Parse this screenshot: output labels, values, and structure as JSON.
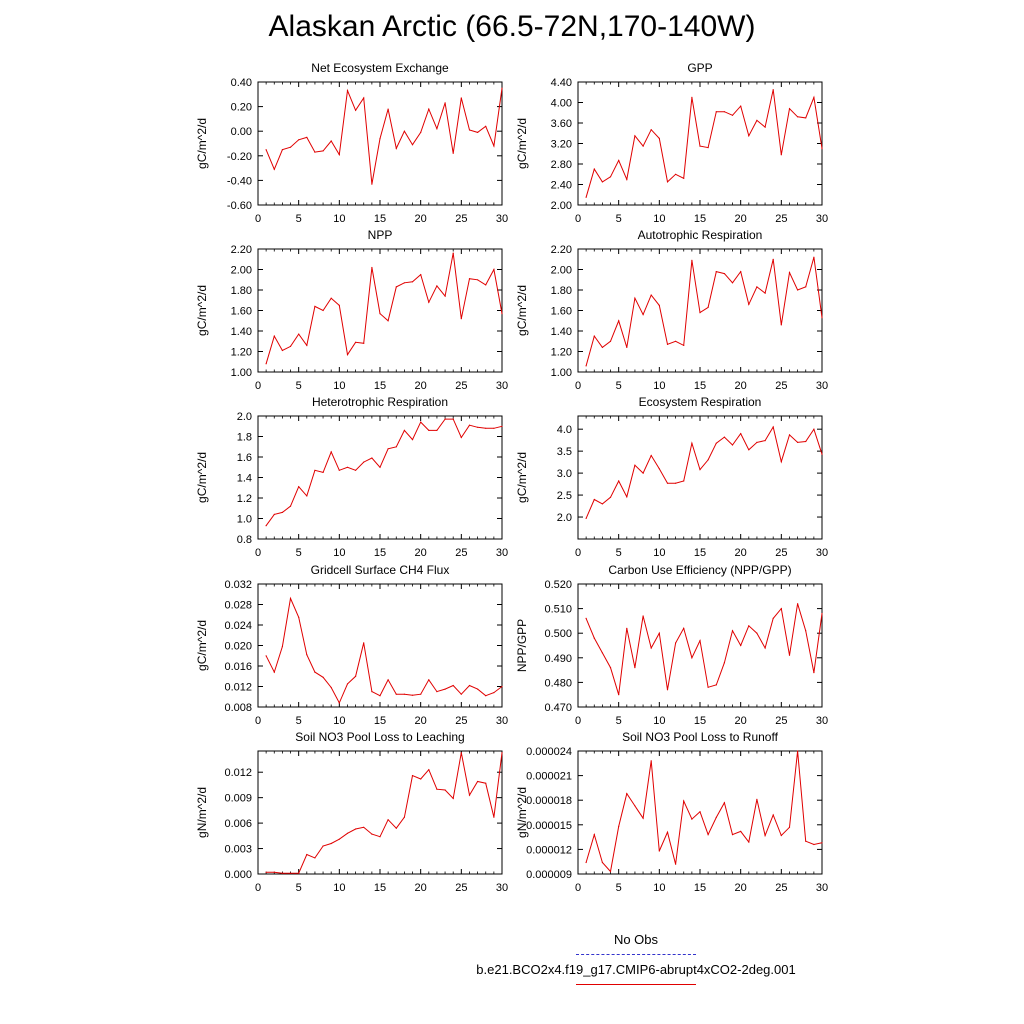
{
  "title": "Alaskan Arctic (66.5-72N,170-140W)",
  "legend": {
    "no_obs_label": "No Obs",
    "no_obs_color": "#3333cc",
    "run_label": "b.e21.BCO2x4.f19_g17.CMIP6-abrupt4xCO2-2deg.001",
    "run_color": "#e00000"
  },
  "chart_data": [
    {
      "type": "line",
      "title": "Net Ecosystem Exchange",
      "ylabel": "gC/m^2/d",
      "xlim": [
        0,
        30
      ],
      "ylim": [
        -0.6,
        0.4
      ],
      "xticks": [
        "0",
        "5",
        "10",
        "15",
        "20",
        "25",
        "30"
      ],
      "yticks": [
        "-0.60",
        "-0.40",
        "-0.20",
        "0.00",
        "0.20",
        "0.40"
      ],
      "x": [
        1,
        2,
        3,
        4,
        5,
        6,
        7,
        8,
        9,
        10,
        11,
        12,
        13,
        14,
        15,
        16,
        17,
        18,
        19,
        20,
        21,
        22,
        23,
        24,
        25,
        26,
        27,
        28,
        29,
        30
      ],
      "values": [
        -0.15,
        -0.31,
        -0.15,
        -0.13,
        -0.07,
        -0.05,
        -0.17,
        -0.16,
        -0.08,
        -0.19,
        0.33,
        0.17,
        0.27,
        -0.43,
        -0.06,
        0.18,
        -0.14,
        0.0,
        -0.11,
        -0.01,
        0.18,
        0.02,
        0.23,
        -0.18,
        0.27,
        0.01,
        -0.01,
        0.04,
        -0.12,
        0.35
      ]
    },
    {
      "type": "line",
      "title": "GPP",
      "ylabel": "gC/m^2/d",
      "xlim": [
        0,
        30
      ],
      "ylim": [
        2.0,
        4.4
      ],
      "xticks": [
        "0",
        "5",
        "10",
        "15",
        "20",
        "25",
        "30"
      ],
      "yticks": [
        "2.00",
        "2.40",
        "2.80",
        "3.20",
        "3.60",
        "4.00",
        "4.40"
      ],
      "x": [
        1,
        2,
        3,
        4,
        5,
        6,
        7,
        8,
        9,
        10,
        11,
        12,
        13,
        14,
        15,
        16,
        17,
        18,
        19,
        20,
        21,
        22,
        23,
        24,
        25,
        26,
        27,
        28,
        29,
        30
      ],
      "values": [
        2.15,
        2.7,
        2.45,
        2.55,
        2.87,
        2.5,
        3.35,
        3.15,
        3.47,
        3.3,
        2.45,
        2.6,
        2.52,
        4.1,
        3.15,
        3.12,
        3.82,
        3.82,
        3.75,
        3.93,
        3.35,
        3.65,
        3.52,
        4.25,
        2.98,
        3.88,
        3.72,
        3.7,
        4.1,
        3.1
      ]
    },
    {
      "type": "line",
      "title": "NPP",
      "ylabel": "gC/m^2/d",
      "xlim": [
        0,
        30
      ],
      "ylim": [
        1.0,
        2.2
      ],
      "xticks": [
        "0",
        "5",
        "10",
        "15",
        "20",
        "25",
        "30"
      ],
      "yticks": [
        "1.00",
        "1.20",
        "1.40",
        "1.60",
        "1.80",
        "2.00",
        "2.20"
      ],
      "x": [
        1,
        2,
        3,
        4,
        5,
        6,
        7,
        8,
        9,
        10,
        11,
        12,
        13,
        14,
        15,
        16,
        17,
        18,
        19,
        20,
        21,
        22,
        23,
        24,
        25,
        26,
        27,
        28,
        29,
        30
      ],
      "values": [
        1.08,
        1.35,
        1.21,
        1.25,
        1.37,
        1.26,
        1.64,
        1.6,
        1.72,
        1.65,
        1.17,
        1.29,
        1.28,
        2.02,
        1.57,
        1.5,
        1.83,
        1.87,
        1.88,
        1.95,
        1.68,
        1.84,
        1.74,
        2.16,
        1.52,
        1.91,
        1.9,
        1.85,
        2.0,
        1.57
      ]
    },
    {
      "type": "line",
      "title": "Autotrophic Respiration",
      "ylabel": "gC/m^2/d",
      "xlim": [
        0,
        30
      ],
      "ylim": [
        1.0,
        2.2
      ],
      "xticks": [
        "0",
        "5",
        "10",
        "15",
        "20",
        "25",
        "30"
      ],
      "yticks": [
        "1.00",
        "1.20",
        "1.40",
        "1.60",
        "1.80",
        "2.00",
        "2.20"
      ],
      "x": [
        1,
        2,
        3,
        4,
        5,
        6,
        7,
        8,
        9,
        10,
        11,
        12,
        13,
        14,
        15,
        16,
        17,
        18,
        19,
        20,
        21,
        22,
        23,
        24,
        25,
        26,
        27,
        28,
        29,
        30
      ],
      "values": [
        1.06,
        1.35,
        1.24,
        1.3,
        1.5,
        1.24,
        1.72,
        1.56,
        1.75,
        1.65,
        1.27,
        1.3,
        1.26,
        2.09,
        1.58,
        1.63,
        1.98,
        1.96,
        1.87,
        1.98,
        1.66,
        1.83,
        1.77,
        2.1,
        1.46,
        1.97,
        1.8,
        1.83,
        2.12,
        1.53
      ]
    },
    {
      "type": "line",
      "title": "Heterotrophic Respiration",
      "ylabel": "gC/m^2/d",
      "xlim": [
        0,
        30
      ],
      "ylim": [
        0.8,
        2.0
      ],
      "xticks": [
        "0",
        "5",
        "10",
        "15",
        "20",
        "25",
        "30"
      ],
      "yticks": [
        "0.8",
        "1.0",
        "1.2",
        "1.4",
        "1.6",
        "1.8",
        "2.0"
      ],
      "x": [
        1,
        2,
        3,
        4,
        5,
        6,
        7,
        8,
        9,
        10,
        11,
        12,
        13,
        14,
        15,
        16,
        17,
        18,
        19,
        20,
        21,
        22,
        23,
        24,
        25,
        26,
        27,
        28,
        29,
        30
      ],
      "values": [
        0.93,
        1.04,
        1.06,
        1.12,
        1.31,
        1.22,
        1.47,
        1.45,
        1.65,
        1.47,
        1.5,
        1.47,
        1.55,
        1.59,
        1.5,
        1.68,
        1.7,
        1.86,
        1.77,
        1.94,
        1.86,
        1.86,
        1.97,
        1.97,
        1.79,
        1.91,
        1.89,
        1.88,
        1.88,
        1.9
      ]
    },
    {
      "type": "line",
      "title": "Ecosystem Respiration",
      "ylabel": "gC/m^2/d",
      "xlim": [
        0,
        30
      ],
      "ylim": [
        1.5,
        4.3
      ],
      "xticks": [
        "0",
        "5",
        "10",
        "15",
        "20",
        "25",
        "30"
      ],
      "yticks": [
        "2.0",
        "2.5",
        "3.0",
        "3.5",
        "4.0"
      ],
      "x": [
        1,
        2,
        3,
        4,
        5,
        6,
        7,
        8,
        9,
        10,
        11,
        12,
        13,
        14,
        15,
        16,
        17,
        18,
        19,
        20,
        21,
        22,
        23,
        24,
        25,
        26,
        27,
        28,
        29,
        30
      ],
      "values": [
        1.97,
        2.4,
        2.3,
        2.45,
        2.82,
        2.46,
        3.18,
        3.0,
        3.4,
        3.1,
        2.77,
        2.77,
        2.82,
        3.68,
        3.08,
        3.3,
        3.68,
        3.82,
        3.64,
        3.9,
        3.53,
        3.7,
        3.74,
        4.05,
        3.26,
        3.87,
        3.7,
        3.72,
        4.0,
        3.43
      ]
    },
    {
      "type": "line",
      "title": "Gridcell Surface CH4 Flux",
      "ylabel": "gC/m^2/d",
      "xlim": [
        0,
        30
      ],
      "ylim": [
        0.008,
        0.032
      ],
      "xticks": [
        "0",
        "5",
        "10",
        "15",
        "20",
        "25",
        "30"
      ],
      "yticks": [
        "0.008",
        "0.012",
        "0.016",
        "0.020",
        "0.024",
        "0.028",
        "0.032"
      ],
      "x": [
        1,
        2,
        3,
        4,
        5,
        6,
        7,
        8,
        9,
        10,
        11,
        12,
        13,
        14,
        15,
        16,
        17,
        18,
        19,
        20,
        21,
        22,
        23,
        24,
        25,
        26,
        27,
        28,
        29,
        30
      ],
      "values": [
        0.018,
        0.0148,
        0.0198,
        0.0292,
        0.0255,
        0.0182,
        0.0148,
        0.0138,
        0.0118,
        0.0088,
        0.0125,
        0.014,
        0.0205,
        0.011,
        0.0102,
        0.0133,
        0.0105,
        0.0105,
        0.0103,
        0.0105,
        0.0133,
        0.011,
        0.0115,
        0.0122,
        0.0105,
        0.0122,
        0.0115,
        0.0102,
        0.0108,
        0.012
      ]
    },
    {
      "type": "line",
      "title": "Carbon Use Efficiency (NPP/GPP)",
      "ylabel": "NPP/GPP",
      "xlim": [
        0,
        30
      ],
      "ylim": [
        0.47,
        0.52
      ],
      "xticks": [
        "0",
        "5",
        "10",
        "15",
        "20",
        "25",
        "30"
      ],
      "yticks": [
        "0.470",
        "0.480",
        "0.490",
        "0.500",
        "0.510",
        "0.520"
      ],
      "x": [
        1,
        2,
        3,
        4,
        5,
        6,
        7,
        8,
        9,
        10,
        11,
        12,
        13,
        14,
        15,
        16,
        17,
        18,
        19,
        20,
        21,
        22,
        23,
        24,
        25,
        26,
        27,
        28,
        29,
        30
      ],
      "values": [
        0.506,
        0.498,
        0.492,
        0.486,
        0.475,
        0.502,
        0.486,
        0.507,
        0.494,
        0.5,
        0.477,
        0.496,
        0.502,
        0.49,
        0.497,
        0.478,
        0.479,
        0.488,
        0.501,
        0.495,
        0.503,
        0.5,
        0.494,
        0.506,
        0.51,
        0.491,
        0.512,
        0.501,
        0.484,
        0.508
      ]
    },
    {
      "type": "line",
      "title": "Soil NO3 Pool Loss to Leaching",
      "ylabel": "gN/m^2/d",
      "xlim": [
        0,
        30
      ],
      "ylim": [
        0.0,
        0.0145
      ],
      "xticks": [
        "0",
        "5",
        "10",
        "15",
        "20",
        "25",
        "30"
      ],
      "yticks": [
        "0.000",
        "0.003",
        "0.006",
        "0.009",
        "0.012"
      ],
      "x": [
        1,
        2,
        3,
        4,
        5,
        6,
        7,
        8,
        9,
        10,
        11,
        12,
        13,
        14,
        15,
        16,
        17,
        18,
        19,
        20,
        21,
        22,
        23,
        24,
        25,
        26,
        27,
        28,
        29,
        30
      ],
      "values": [
        0.0002,
        0.0002,
        0.0001,
        0.0001,
        0.0001,
        0.0023,
        0.0019,
        0.0033,
        0.0036,
        0.0041,
        0.0048,
        0.0053,
        0.0055,
        0.0047,
        0.0044,
        0.0064,
        0.0054,
        0.0067,
        0.0116,
        0.0112,
        0.0123,
        0.01,
        0.0099,
        0.0089,
        0.0143,
        0.0093,
        0.0109,
        0.0107,
        0.0067,
        0.0143
      ]
    },
    {
      "type": "line",
      "title": "Soil NO3 Pool Loss to Runoff",
      "ylabel": "gN/m^2/d",
      "xlim": [
        0,
        30
      ],
      "ylim": [
        9e-06,
        2.4e-05
      ],
      "xticks": [
        "0",
        "5",
        "10",
        "15",
        "20",
        "25",
        "30"
      ],
      "yticks": [
        "0.000009",
        "0.000012",
        "0.000015",
        "0.000018",
        "0.000021",
        "0.000024"
      ],
      "x": [
        1,
        2,
        3,
        4,
        5,
        6,
        7,
        8,
        9,
        10,
        11,
        12,
        13,
        14,
        15,
        16,
        17,
        18,
        19,
        20,
        21,
        22,
        23,
        24,
        25,
        26,
        27,
        28,
        29,
        30
      ],
      "values": [
        1.04e-05,
        1.38e-05,
        1.04e-05,
        9.3e-06,
        1.48e-05,
        1.88e-05,
        1.73e-05,
        1.58e-05,
        2.28e-05,
        1.18e-05,
        1.41e-05,
        1.02e-05,
        1.79e-05,
        1.57e-05,
        1.66e-05,
        1.38e-05,
        1.59e-05,
        1.77e-05,
        1.38e-05,
        1.42e-05,
        1.29e-05,
        1.81e-05,
        1.37e-05,
        1.62e-05,
        1.37e-05,
        1.47e-05,
        2.4e-05,
        1.3e-05,
        1.26e-05,
        1.28e-05
      ]
    }
  ]
}
